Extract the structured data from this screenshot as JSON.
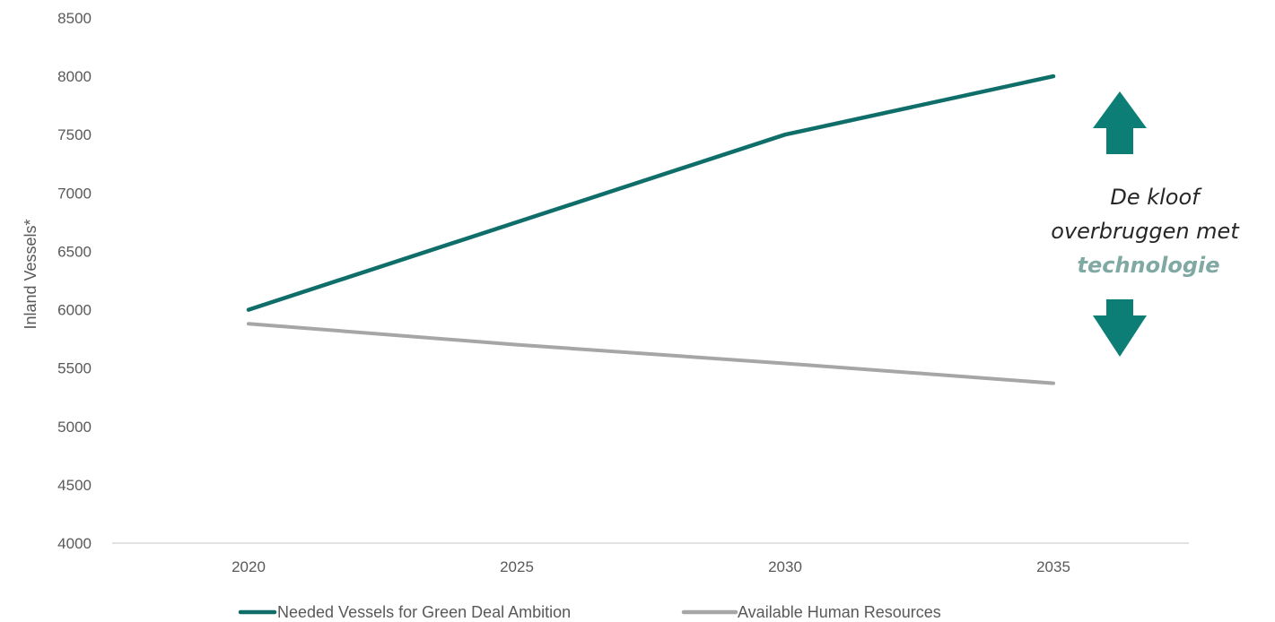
{
  "chart_data": {
    "type": "line",
    "x": [
      "2020",
      "2025",
      "2030",
      "2035"
    ],
    "series": [
      {
        "name": "Needed Vessels for Green Deal Ambition",
        "values": [
          6000,
          6750,
          7500,
          8000
        ],
        "color": "#0F6E6A"
      },
      {
        "name": "Available Human Resources",
        "values": [
          5880,
          5700,
          5540,
          5370
        ],
        "color": "#A6A6A6"
      }
    ],
    "ylabel": "Inland Vessels*",
    "xlabel": "",
    "ylim": [
      4000,
      8500
    ],
    "yticks": [
      4000,
      4500,
      5000,
      5500,
      6000,
      6500,
      7000,
      7500,
      8000,
      8500
    ],
    "grid": false,
    "legend": "bottom",
    "annotation": {
      "line1": "De kloof",
      "line2": "overbruggen met",
      "line3": "technologie",
      "arrow_color": "#0D7E76",
      "accent_color": "#7FA9A2"
    }
  }
}
